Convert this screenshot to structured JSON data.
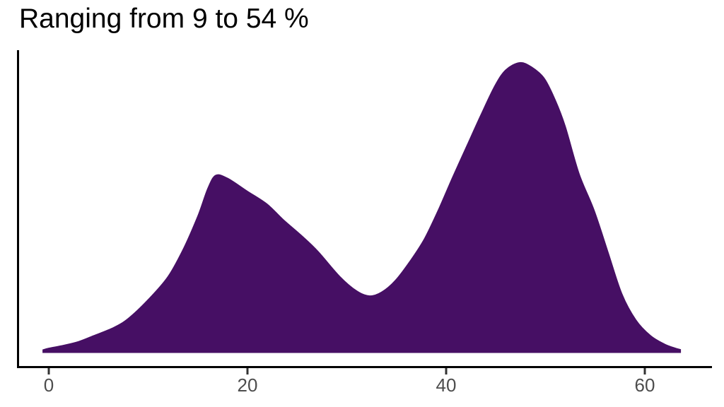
{
  "title": "Ranging from 9 to 54 %",
  "chart_data": {
    "type": "area",
    "subtype": "density",
    "title": "Ranging from 9 to 54 %",
    "xlabel": "",
    "ylabel": "",
    "legend": "none",
    "grid": "off",
    "x_ticks": [
      0,
      20,
      40,
      60
    ],
    "xlim": [
      -3.2,
      66.8
    ],
    "y_scale_note": "relative density, max peak = 1.0 (no y-axis labels shown)",
    "peaks": [
      {
        "x": 16.7,
        "rel_density": 0.61
      },
      {
        "x": 47.4,
        "rel_density": 1.0
      }
    ],
    "valley": {
      "x": 32.2,
      "rel_density": 0.193
    },
    "curve": {
      "x": [
        -0.6,
        0,
        1.5,
        3,
        4.5,
        6.5,
        8,
        10,
        12,
        13.6,
        15,
        16,
        16.8,
        18,
        20,
        22,
        23.6,
        25.5,
        27.1,
        29.3,
        31,
        32.3,
        33.5,
        34.9,
        36.4,
        37.8,
        39.2,
        40.6,
        42.1,
        43.5,
        44.9,
        46,
        47.4,
        48.6,
        49.9,
        51,
        52,
        53.4,
        54.9,
        56.3,
        57.7,
        59.1,
        60.6,
        62,
        63,
        63.6
      ],
      "y": [
        0.006,
        0.012,
        0.022,
        0.035,
        0.055,
        0.083,
        0.115,
        0.18,
        0.26,
        0.36,
        0.47,
        0.565,
        0.61,
        0.6,
        0.555,
        0.51,
        0.457,
        0.4,
        0.347,
        0.26,
        0.21,
        0.193,
        0.206,
        0.247,
        0.315,
        0.39,
        0.49,
        0.6,
        0.714,
        0.82,
        0.92,
        0.975,
        1.0,
        0.985,
        0.945,
        0.87,
        0.78,
        0.615,
        0.49,
        0.345,
        0.2,
        0.11,
        0.055,
        0.026,
        0.013,
        0.007
      ]
    },
    "colors": {
      "fill": "#460F64",
      "axis_line": "#000000",
      "tick_mark": "#333333",
      "tick_label": "#4d4d4d",
      "title": "#000000",
      "background": "#ffffff"
    }
  }
}
